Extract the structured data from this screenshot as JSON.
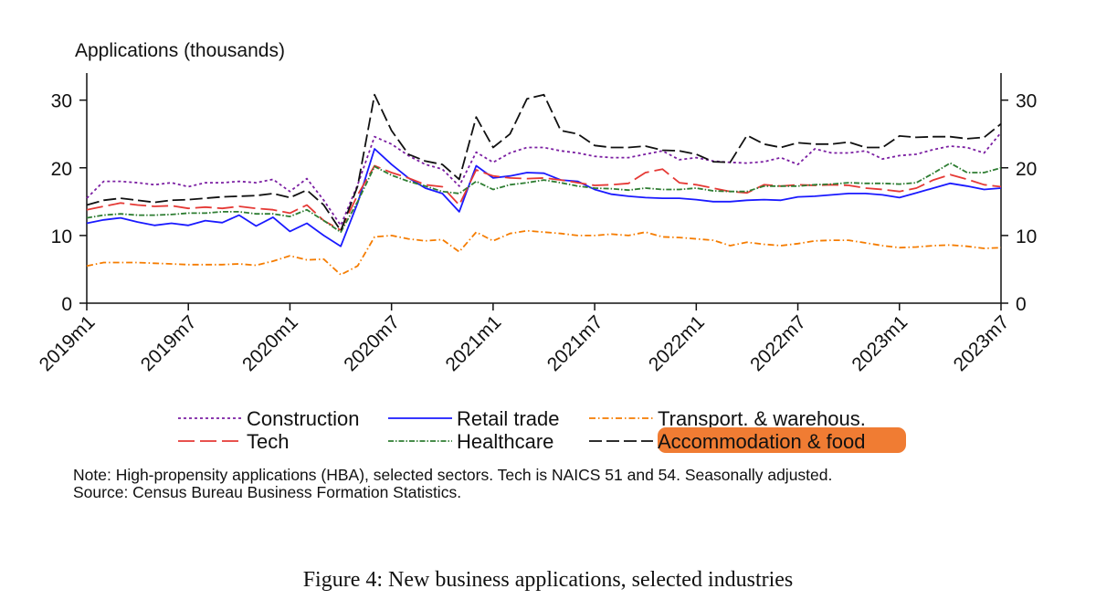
{
  "chart_data": {
    "type": "line",
    "ylabel": "Applications (thousands)",
    "ylim": [
      0,
      34
    ],
    "yticks": [
      0,
      10,
      20,
      30
    ],
    "xlim": [
      0,
      54
    ],
    "x_tick_labels": [
      "2019m1",
      "2019m7",
      "2020m1",
      "2020m7",
      "2021m1",
      "2021m7",
      "2022m1",
      "2022m7",
      "2023m1",
      "2023m7"
    ],
    "x_tick_positions": [
      0,
      6,
      12,
      18,
      24,
      30,
      36,
      42,
      48,
      54
    ],
    "x_start": "2019m1",
    "series": [
      {
        "name": "Construction",
        "color": "#7b1fa2",
        "dash": "3,3",
        "values": [
          15.5,
          18.0,
          18.0,
          17.8,
          17.5,
          17.8,
          17.2,
          17.8,
          17.8,
          18.0,
          17.8,
          18.3,
          16.5,
          18.4,
          15.2,
          11.5,
          17.5,
          24.6,
          23.5,
          21.8,
          20.5,
          19.8,
          17.3,
          22.3,
          20.8,
          22.2,
          23.0,
          23.0,
          22.5,
          22.2,
          21.7,
          21.5,
          21.5,
          22.0,
          22.5,
          21.2,
          21.5,
          21.0,
          20.8,
          20.7,
          20.9,
          21.5,
          20.5,
          22.8,
          22.2,
          22.2,
          22.5,
          21.3,
          21.8,
          22.0,
          22.7,
          23.2,
          23.0,
          22.2,
          25.2
        ]
      },
      {
        "name": "Retail trade",
        "color": "#1a1aff",
        "dash": "",
        "values": [
          11.8,
          12.3,
          12.6,
          12.0,
          11.5,
          11.8,
          11.5,
          12.2,
          11.9,
          13.0,
          11.4,
          12.7,
          10.6,
          11.8,
          10.0,
          8.4,
          14.8,
          22.8,
          20.5,
          18.5,
          17.0,
          16.2,
          13.5,
          20.3,
          18.5,
          18.8,
          19.3,
          19.2,
          18.2,
          18.0,
          16.8,
          16.1,
          15.8,
          15.6,
          15.5,
          15.5,
          15.3,
          15.0,
          15.0,
          15.2,
          15.3,
          15.2,
          15.7,
          15.8,
          16.0,
          16.2,
          16.2,
          16.0,
          15.6,
          16.3,
          17.0,
          17.7,
          17.3,
          16.8,
          17.0
        ]
      },
      {
        "name": "Transport. & warehous.",
        "color": "#f57c00",
        "dash": "7,3,1.5,3",
        "values": [
          5.5,
          6.0,
          6.0,
          6.0,
          5.9,
          5.8,
          5.7,
          5.7,
          5.7,
          5.8,
          5.6,
          6.2,
          7.0,
          6.4,
          6.5,
          4.2,
          5.5,
          9.8,
          10.0,
          9.5,
          9.2,
          9.4,
          7.6,
          10.5,
          9.2,
          10.3,
          10.7,
          10.5,
          10.3,
          10.0,
          10.0,
          10.2,
          10.0,
          10.5,
          9.8,
          9.7,
          9.5,
          9.3,
          8.5,
          9.0,
          8.7,
          8.5,
          8.8,
          9.2,
          9.3,
          9.3,
          8.9,
          8.5,
          8.2,
          8.3,
          8.5,
          8.6,
          8.4,
          8.1,
          8.2
        ]
      },
      {
        "name": "Tech",
        "color": "#e53935",
        "dash": "18,6",
        "values": [
          13.8,
          14.3,
          14.8,
          14.5,
          14.3,
          14.4,
          14.0,
          14.2,
          14.0,
          14.3,
          14.0,
          13.8,
          13.3,
          14.5,
          12.2,
          10.8,
          16.0,
          20.3,
          19.3,
          18.5,
          17.5,
          17.2,
          14.5,
          19.7,
          18.8,
          18.5,
          18.4,
          18.5,
          18.2,
          17.8,
          17.4,
          17.5,
          17.7,
          19.3,
          19.8,
          17.8,
          17.5,
          17.0,
          16.5,
          16.3,
          17.5,
          17.3,
          17.5,
          17.4,
          17.5,
          17.4,
          17.0,
          16.8,
          16.5,
          17.0,
          18.2,
          19.0,
          18.3,
          17.5,
          17.2
        ]
      },
      {
        "name": "Healthcare",
        "color": "#2e7d32",
        "dash": "6,2,1.5,2",
        "values": [
          12.6,
          13.0,
          13.2,
          13.0,
          13.0,
          13.1,
          13.3,
          13.3,
          13.5,
          13.5,
          13.2,
          13.2,
          12.8,
          13.8,
          12.2,
          10.5,
          15.0,
          20.2,
          18.9,
          18.0,
          17.3,
          16.5,
          16.2,
          18.0,
          16.8,
          17.5,
          17.8,
          18.2,
          17.8,
          17.3,
          17.0,
          16.9,
          16.7,
          17.0,
          16.8,
          16.8,
          17.0,
          16.6,
          16.5,
          16.5,
          17.3,
          17.3,
          17.3,
          17.5,
          17.6,
          17.8,
          17.7,
          17.7,
          17.6,
          17.8,
          19.2,
          20.7,
          19.3,
          19.3,
          20.0
        ]
      },
      {
        "name": "Accommodation & food",
        "color": "#111111",
        "dash": "14,5",
        "values": [
          14.5,
          15.2,
          15.5,
          15.2,
          14.9,
          15.2,
          15.3,
          15.5,
          15.7,
          15.8,
          15.9,
          16.2,
          15.6,
          16.7,
          14.5,
          10.7,
          17.3,
          30.8,
          25.5,
          22.0,
          21.0,
          20.5,
          18.3,
          27.5,
          23.0,
          25.0,
          30.2,
          30.8,
          25.5,
          25.0,
          23.3,
          23.0,
          23.0,
          23.2,
          22.6,
          22.5,
          22.0,
          20.9,
          20.8,
          24.8,
          23.5,
          23.0,
          23.7,
          23.5,
          23.5,
          23.8,
          23.0,
          23.0,
          24.7,
          24.5,
          24.6,
          24.6,
          24.3,
          24.5,
          26.5
        ]
      }
    ],
    "legend_position": "bottom",
    "highlighted_legend_entry": "Accommodation & food"
  },
  "note_line1": "Note: High-propensity applications (HBA), selected sectors. Tech is NAICS 51 and 54. Seasonally adjusted.",
  "note_line2": "Source: Census Bureau Business Formation Statistics.",
  "caption": "Figure 4: New business applications, selected industries",
  "colors": {
    "highlight": "#f07c33"
  }
}
